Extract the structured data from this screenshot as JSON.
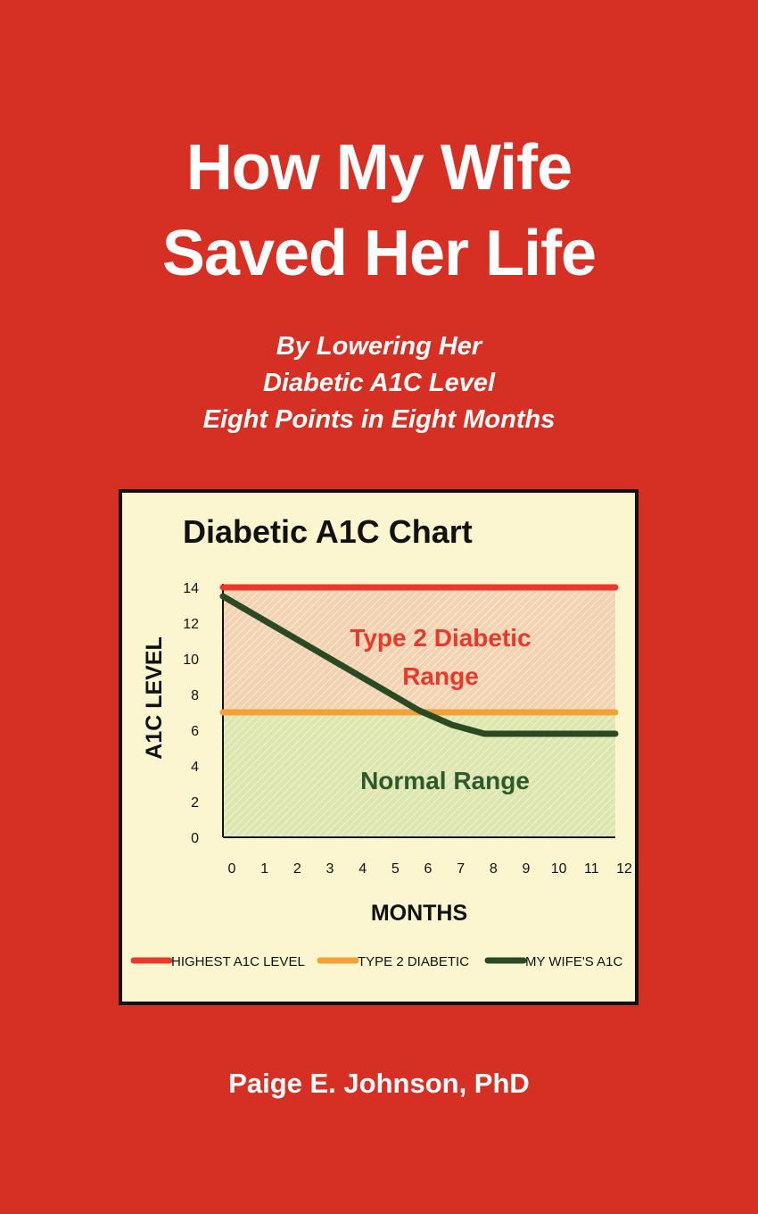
{
  "cover": {
    "title_lines": [
      "How My Wife",
      "Saved Her Life"
    ],
    "subtitle_lines": [
      "By Lowering Her",
      "Diabetic A1C Level",
      "Eight Points in Eight Months"
    ],
    "author": "Paige E. Johnson, PhD",
    "colors": {
      "background": "#d63025",
      "text": "#ffffff",
      "chart_background": "#fbf6cf"
    }
  },
  "chart_data": {
    "type": "line",
    "title": "Diabetic  A1C  Chart",
    "xlabel": "MONTHS",
    "ylabel": "A1C  LEVEL",
    "x": [
      0,
      1,
      2,
      3,
      4,
      5,
      6,
      7,
      8,
      9,
      10,
      11,
      12
    ],
    "xlim": [
      0,
      12
    ],
    "ylim": [
      0,
      14
    ],
    "y_ticks": [
      0,
      2,
      4,
      6,
      8,
      10,
      12,
      14
    ],
    "grid": false,
    "legend_position": "bottom",
    "regions": [
      {
        "label_lines": [
          "Type 2 Diabetic",
          "Range"
        ],
        "y_from": 7,
        "y_to": 14,
        "color": "#e8392c",
        "fill": "#f2d2b0"
      },
      {
        "label_lines": [
          "Normal Range"
        ],
        "y_from": 0,
        "y_to": 7,
        "color": "#2d5a2a",
        "fill": "#dde6ae"
      }
    ],
    "series": [
      {
        "name": "HIGHEST A1C LEVEL",
        "color": "#e8392c",
        "points": [
          [
            0,
            14
          ],
          [
            12,
            14
          ]
        ]
      },
      {
        "name": "TYPE 2 DIABETIC",
        "color": "#f3a23a",
        "points": [
          [
            0,
            7
          ],
          [
            12,
            7
          ]
        ]
      },
      {
        "name": "MY WIFE'S A1C",
        "color": "#2b4a24",
        "points": [
          [
            0,
            13.5
          ],
          [
            6,
            7.1
          ],
          [
            7,
            6.3
          ],
          [
            8,
            5.8
          ],
          [
            9,
            5.8
          ],
          [
            10,
            5.8
          ],
          [
            11,
            5.8
          ],
          [
            12,
            5.8
          ]
        ]
      }
    ]
  }
}
